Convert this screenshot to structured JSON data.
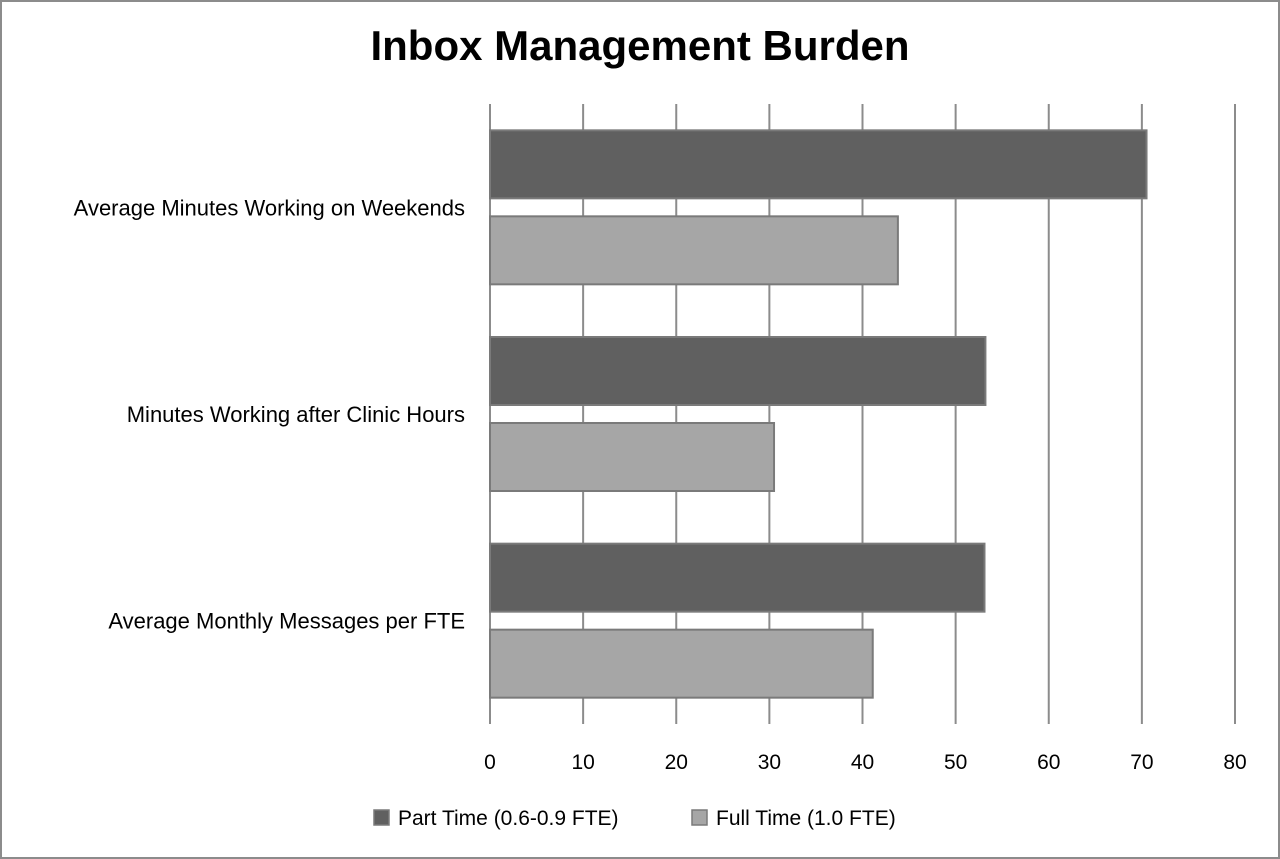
{
  "chart_data": {
    "type": "bar",
    "orientation": "horizontal",
    "title": "Inbox Management Burden",
    "categories": [
      "Average Minutes Working on Weekends",
      "Minutes Working after Clinic Hours",
      "Average Monthly Messages per FTE"
    ],
    "series": [
      {
        "name": "Part Time (0.6-0.9 FTE)",
        "color": "#606060",
        "values": [
          70.5,
          53.2,
          53.1
        ]
      },
      {
        "name": "Full Time (1.0 FTE)",
        "color": "#a6a6a6",
        "values": [
          43.8,
          30.5,
          41.1
        ]
      }
    ],
    "xlim": [
      0,
      80
    ],
    "xticks": [
      "0",
      "10",
      "20",
      "30",
      "40",
      "50",
      "60",
      "70",
      "80"
    ],
    "grid": true,
    "legend_position": "bottom"
  }
}
